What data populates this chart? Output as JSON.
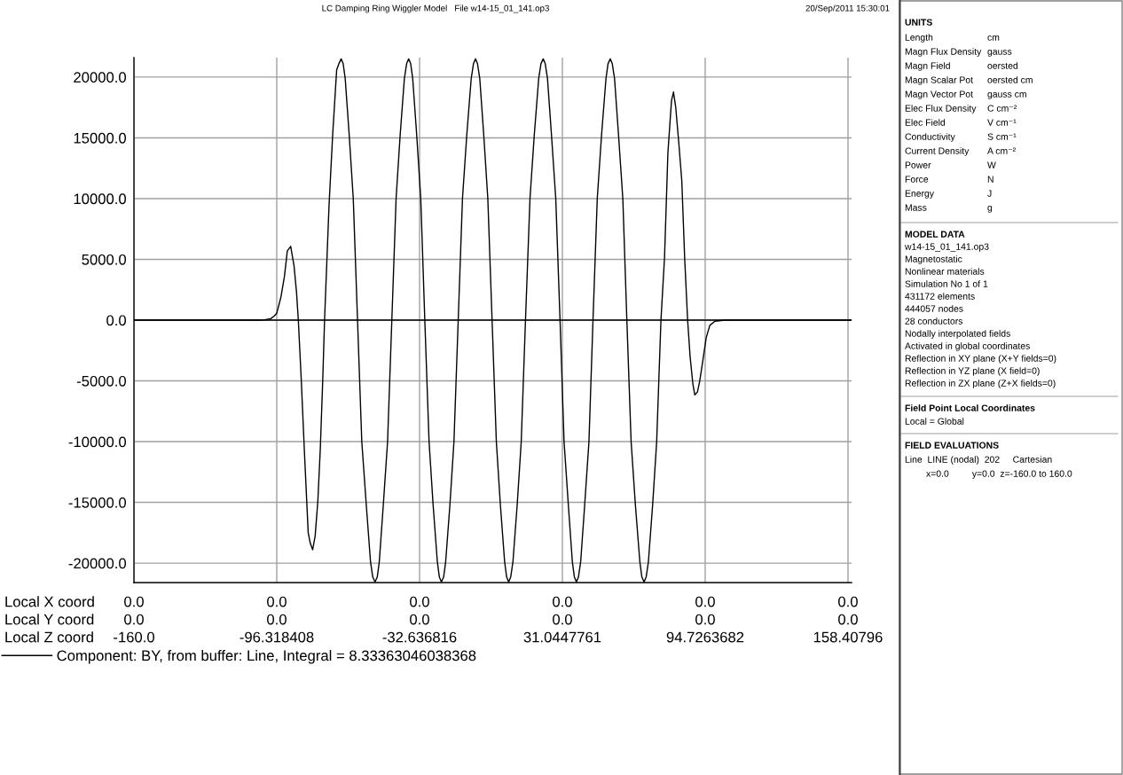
{
  "chart_data": [
    {
      "type": "line",
      "title": "LC Damping Ring Wiggler Model   File w14-15_01_141.op3",
      "annotations": [
        "20/Sep/2011 15:30:01",
        "Local X coord",
        "0.0",
        "0.0",
        "0.0",
        "0.0",
        "0.0",
        "0.0",
        "Local Y coord",
        "0.0",
        "0.0",
        "0.0",
        "0.0",
        "0.0",
        "0.0"
      ],
      "xlabel": "Local Z coord",
      "x": [
        -160,
        -104,
        -101.8,
        -99,
        -97.5,
        -96.3,
        -94.5,
        -92.9,
        -91.6,
        -90.1,
        -88.6,
        -87.5,
        -86.7,
        -85.4,
        -83.9,
        -82.3,
        -81.4,
        -80.3,
        -79.2,
        -78.0,
        -76.9,
        -75.8,
        -75.0,
        -73.0,
        -71.4,
        -69.6,
        -68.6,
        -67.6,
        -66.7,
        -65.8,
        -64.0,
        -62.2,
        -60.3,
        -58.4,
        -56.4,
        -54.5,
        -53.5,
        -52.5,
        -51.5,
        -50.6,
        -48.8,
        -46.9,
        -45.0,
        -43.1,
        -41.3,
        -39.4,
        -38.4,
        -37.5,
        -36.6,
        -35.7,
        -33.9,
        -32.1,
        -30.3,
        -28.4,
        -26.6,
        -24.7,
        -23.8,
        -22.9,
        -21.9,
        -21.0,
        -19.1,
        -17.3,
        -15.4,
        -13.5,
        -11.6,
        -9.6,
        -8.6,
        -7.7,
        -6.8,
        -5.8,
        -4.0,
        -2.2,
        -0.3,
        1.6,
        3.4,
        5.3,
        6.2,
        7.1,
        8.0,
        9.0,
        10.9,
        12.7,
        14.6,
        16.6,
        18.5,
        20.5,
        21.5,
        22.5,
        23.4,
        24.4,
        26.2,
        28.1,
        30.0,
        31.8,
        33.7,
        35.5,
        36.4,
        37.3,
        38.2,
        39.2,
        41.0,
        42.9,
        44.7,
        46.6,
        48.5,
        50.5,
        51.4,
        52.4,
        53.3,
        54.3,
        56.1,
        58.0,
        59.8,
        61.7,
        63.6,
        65.6,
        66.5,
        67.5,
        68.4,
        69.4,
        71.3,
        73.1,
        75.0,
        76.6,
        78.1,
        79.7,
        80.6,
        81.6,
        83.0,
        84.3,
        85.6,
        86.9,
        88.0,
        89.2,
        90.1,
        91.3,
        92.3,
        93.6,
        95.2,
        96.8,
        99.1,
        103.7,
        160
      ],
      "series": [
        {
          "name": "Component: BY, from buffer: Line, Integral = 8.33363046038368",
          "color": "#000000",
          "values": [
            0,
            0,
            30,
            120,
            330,
            570,
            1860,
            3580,
            5700,
            6070,
            4440,
            2290,
            0,
            -4870,
            -11170,
            -17480,
            -18340,
            -18900,
            -17760,
            -14900,
            -10600,
            -4870,
            0,
            9450,
            15200,
            20600,
            21100,
            21500,
            21100,
            19900,
            15200,
            10000,
            0,
            -10000,
            -15200,
            -19900,
            -21150,
            -21550,
            -21150,
            -19900,
            -15200,
            -10000,
            0,
            10000,
            15200,
            19900,
            21100,
            21500,
            21100,
            19900,
            15200,
            10000,
            0,
            -10000,
            -15200,
            -19900,
            -21150,
            -21550,
            -21150,
            -19900,
            -15200,
            -10000,
            0,
            10000,
            15200,
            19900,
            21100,
            21500,
            21100,
            19900,
            15200,
            10000,
            0,
            -10000,
            -15200,
            -19900,
            -21150,
            -21550,
            -21150,
            -19900,
            -15200,
            -10000,
            0,
            10000,
            15200,
            19900,
            21100,
            21500,
            21100,
            19900,
            15200,
            10000,
            0,
            -10000,
            -15200,
            -19900,
            -21150,
            -21550,
            -21150,
            -19900,
            -15200,
            -10000,
            0,
            10000,
            15200,
            19900,
            21100,
            21500,
            21100,
            19900,
            15200,
            10000,
            0,
            -10000,
            -15200,
            -19900,
            -21150,
            -21550,
            -21150,
            -19900,
            -15200,
            -10000,
            0,
            5160,
            13750,
            18050,
            18770,
            17500,
            14500,
            11460,
            5000,
            0,
            -3000,
            -5200,
            -6160,
            -5900,
            -5000,
            -3440,
            -1430,
            -430,
            -90,
            0,
            0
          ]
        }
      ],
      "xlim": [
        -160,
        160
      ],
      "ylim": [
        -21600,
        21600
      ],
      "xticks": [
        {
          "value": -160,
          "label": "-160.0"
        },
        -96.318408,
        -32.636816,
        31.0447761,
        94.7263682,
        158.40796
      ],
      "yticks": [
        {
          "value": -20000,
          "label": "-20000.0"
        },
        {
          "value": -15000,
          "label": "-15000.0"
        },
        {
          "value": -10000,
          "label": "-10000.0"
        },
        {
          "value": -5000,
          "label": "-5000.0"
        },
        {
          "value": 0,
          "label": "0.0"
        },
        {
          "value": 5000,
          "label": "5000.0"
        },
        {
          "value": 10000,
          "label": "10000.0"
        },
        {
          "value": 15000,
          "label": "15000.0"
        },
        {
          "value": 20000,
          "label": "20000.0"
        }
      ],
      "grid": true,
      "legend": "bottom left",
      "ref_lines": [
        {
          "axis": "y",
          "value": 0,
          "color": "#000000"
        }
      ]
    },
    {
      "type": "other",
      "title": "UNITS",
      "annotations": [
        "Length",
        "cm",
        "Magn Flux Density",
        "gauss",
        "Magn Field",
        "oersted",
        "Magn Scalar Pot",
        "oersted cm",
        "Magn Vector Pot",
        "gauss cm",
        "Elec Flux Density",
        "C cm⁻²",
        "Elec Field",
        "V cm⁻¹",
        "Conductivity",
        "S cm⁻¹",
        "Current Density",
        "A cm⁻²",
        "Power",
        "W",
        "Force",
        "N",
        "Energy",
        "J",
        "Mass",
        "g"
      ]
    },
    {
      "type": "other",
      "title": "MODEL DATA",
      "annotations": [
        "w14-15_01_141.op3",
        "Magnetostatic",
        "Nonlinear materials",
        "Simulation No 1 of 1",
        "431172 elements",
        "444057 nodes",
        "28 conductors",
        "Nodally interpolated fields",
        "Activated in global coordinates",
        "Reflection in XY plane (X+Y fields=0)",
        "Reflection in YZ plane (X field=0)",
        "Reflection in ZX plane (Z+X fields=0)"
      ]
    },
    {
      "type": "other",
      "title": "Field Point Local Coordinates",
      "annotations": [
        "Local = Global"
      ]
    },
    {
      "type": "other",
      "title": "FIELD EVALUATIONS",
      "annotations": [
        "Line  LINE (nodal)  202     Cartesian",
        "x=0.0         y=0.0  z=-160.0 to 160.0"
      ]
    }
  ]
}
